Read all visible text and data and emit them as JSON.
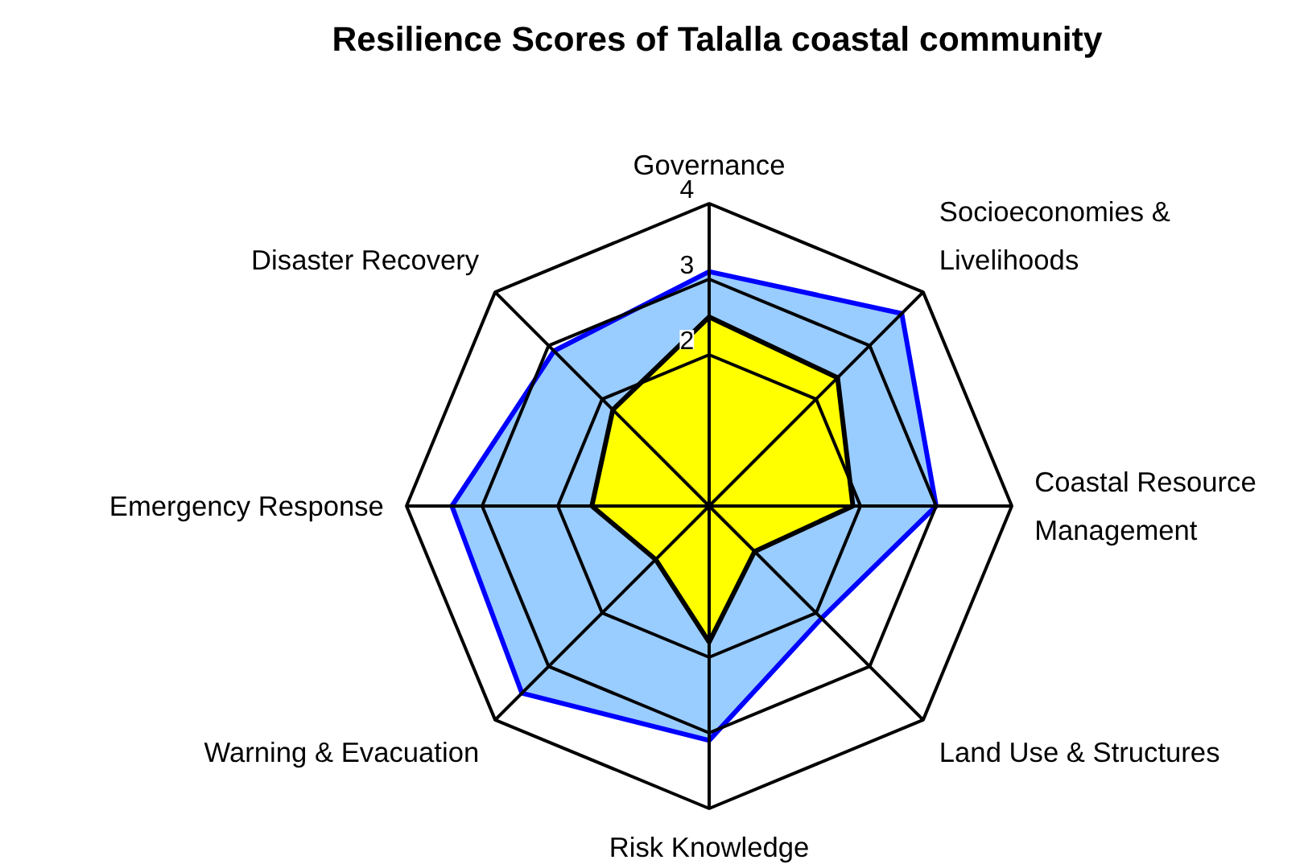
{
  "chart_data": {
    "type": "radar",
    "title": "Resilience Scores of Talalla coastal community",
    "categories": [
      "Governance",
      "Socioeconomies & Livelihoods",
      "Coastal Resource Management",
      "Land Use & Structures",
      "Risk Knowledge",
      "Warning & Evacuation",
      "Emergency Response",
      "Disaster Recovery"
    ],
    "series": [
      {
        "color": "#99ccff",
        "values": [
          3.1,
          3.6,
          3.0,
          2.1,
          3.1,
          3.5,
          3.4,
          2.9
        ]
      },
      {
        "color": "#ffff00",
        "values": [
          2.5,
          2.4,
          1.9,
          0.85,
          1.8,
          1.0,
          1.55,
          1.8
        ]
      }
    ],
    "ylim": [
      0,
      4
    ],
    "yticks": [
      2,
      3,
      4
    ],
    "grid": true
  }
}
